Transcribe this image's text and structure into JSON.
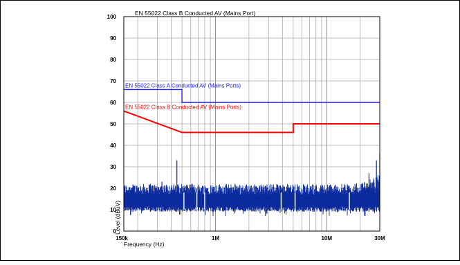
{
  "chart_data": {
    "type": "line",
    "title": "EN 55022 Class B Conducted AV (Mains Port)",
    "xlabel": "Frequency (Hz)",
    "ylabel": "Level (dBuV)",
    "x_scale": "log",
    "xlim": [
      150000,
      30000000
    ],
    "ylim": [
      0,
      100
    ],
    "grid": true,
    "x_tick_labels": [
      {
        "value": 150000,
        "label": "150k"
      },
      {
        "value": 1000000,
        "label": "1M"
      },
      {
        "value": 10000000,
        "label": "10M"
      },
      {
        "value": 30000000,
        "label": "30M"
      }
    ],
    "y_ticks": [
      0,
      10,
      20,
      30,
      40,
      50,
      60,
      70,
      80,
      90,
      100
    ],
    "series": [
      {
        "name": "EN 55022 Class A Conducted AV (Mains Ports)",
        "color": "#1a1aff",
        "points": [
          [
            150000,
            66
          ],
          [
            500000,
            66
          ],
          [
            500000,
            60
          ],
          [
            30000000,
            60
          ]
        ]
      },
      {
        "name": "EN 55022 Class B Conducted AV (Mains Ports)",
        "color": "#ff0000",
        "points": [
          [
            150000,
            56
          ],
          [
            500000,
            46
          ],
          [
            5000000,
            46
          ],
          [
            5000000,
            50
          ],
          [
            30000000,
            50
          ]
        ]
      },
      {
        "name": "",
        "color": "#0a2a9e",
        "style": "noise-band",
        "band": {
          "low": 9,
          "high": 20,
          "floor_dip": 7
        },
        "spikes": [
          {
            "x": 260000,
            "y": 22
          },
          {
            "x": 330000,
            "y": 23
          },
          {
            "x": 450000,
            "y": 33
          },
          {
            "x": 1500000,
            "y": 22
          },
          {
            "x": 24000000,
            "y": 27
          },
          {
            "x": 28000000,
            "y": 33
          },
          {
            "x": 30000000,
            "y": 36
          }
        ],
        "gaps": [
          520000,
          680000,
          800000,
          3900000,
          5200000,
          16000000
        ]
      }
    ]
  }
}
